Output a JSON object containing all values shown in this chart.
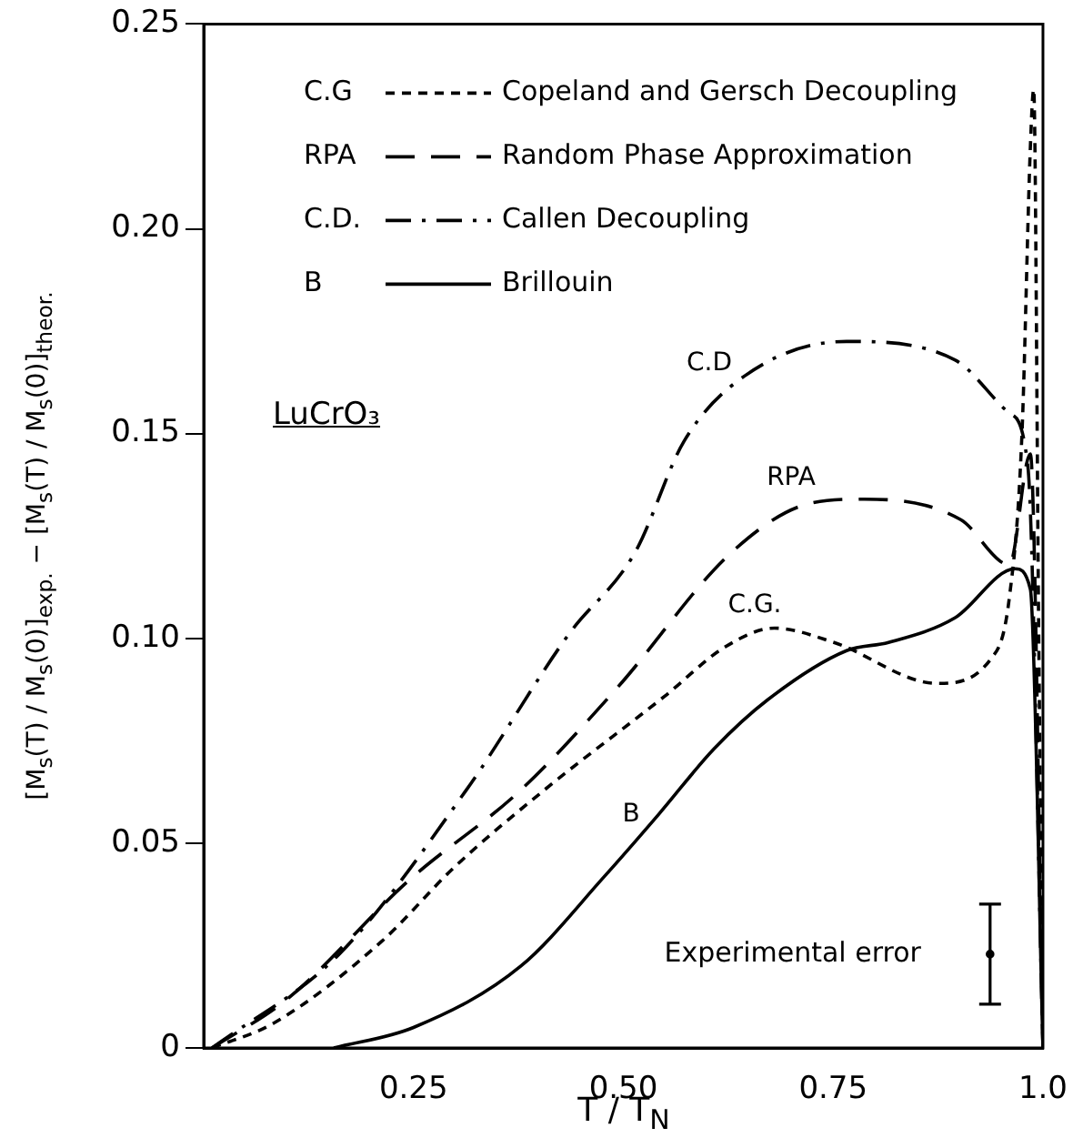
{
  "chart_data": {
    "type": "line",
    "title": "LuCrO₃",
    "xlabel": "T / T$_{N}$",
    "ylabel": "[M$_{s}$(T) / M$_{s}$(0)]$_{exp.}$ − [M$_{s}$(T) / M$_{s}$(0)]$_{theor.}$",
    "xlim": [
      0,
      1
    ],
    "ylim": [
      0,
      0.25
    ],
    "xticks": [
      0.25,
      {
        "value": 0.5,
        "label": "0.50"
      },
      0.75,
      {
        "value": 1,
        "label": "1.0"
      }
    ],
    "yticks": [
      0,
      0.05,
      {
        "value": 0.1,
        "label": "0.10"
      },
      0.15,
      {
        "value": 0.2,
        "label": "0.20"
      },
      0.25
    ],
    "grid": false,
    "legend": "top",
    "series": [
      {
        "name": "Copeland and Gersch Decoupling",
        "color": "#000000",
        "line_style": "dashed",
        "x": [
          0.01,
          0.083,
          0.212,
          0.298,
          0.406,
          0.55,
          0.622,
          0.68,
          0.751,
          0.874,
          0.938,
          0.96,
          0.975,
          0.985,
          0.989,
          0.995,
          1.0
        ],
        "values": [
          0,
          0.006,
          0.026,
          0.044,
          0.063,
          0.086,
          0.098,
          0.1025,
          0.099,
          0.089,
          0.095,
          0.11,
          0.15,
          0.22,
          0.234,
          0.1,
          0
        ]
      },
      {
        "name": "Random Phase Approximation",
        "color": "#000000",
        "line_style": "longdash",
        "x": [
          0.01,
          0.1,
          0.245,
          0.378,
          0.493,
          0.629,
          0.723,
          0.787,
          0.902,
          0.96,
          0.985,
          1.0
        ],
        "values": [
          0,
          0.012,
          0.041,
          0.063,
          0.088,
          0.121,
          0.133,
          0.134,
          0.129,
          0.118,
          0.145,
          0
        ]
      },
      {
        "name": "Callen Decoupling",
        "color": "#000000",
        "line_style": "dashdot",
        "x": [
          0.01,
          0.162,
          0.313,
          0.435,
          0.514,
          0.572,
          0.644,
          0.766,
          0.895,
          0.96,
          0.982,
          1.0
        ],
        "values": [
          0,
          0.023,
          0.063,
          0.101,
          0.121,
          0.148,
          0.164,
          0.1725,
          0.168,
          0.155,
          0.142,
          0
        ]
      },
      {
        "name": "Brillouin",
        "color": "#000000",
        "line_style": "solid",
        "x": [
          0.155,
          0.25,
          0.378,
          0.478,
          0.542,
          0.608,
          0.672,
          0.766,
          0.816,
          0.895,
          0.967,
          0.985,
          1.0
        ],
        "values": [
          0,
          0.005,
          0.02,
          0.042,
          0.057,
          0.073,
          0.085,
          0.097,
          0.099,
          0.105,
          0.117,
          0.112,
          0
        ]
      },
      {
        "name": "Experimental error",
        "type": "scatter",
        "marker": "circle",
        "color": "#000000",
        "x": [
          0.937
        ],
        "values": [
          0.0229
        ],
        "errors": [
          0.0122
        ]
      }
    ],
    "annotations": [
      "C.G",
      "RPA",
      "C.D.",
      "B",
      "C.D",
      "RPA",
      "C.G.",
      "B"
    ]
  }
}
